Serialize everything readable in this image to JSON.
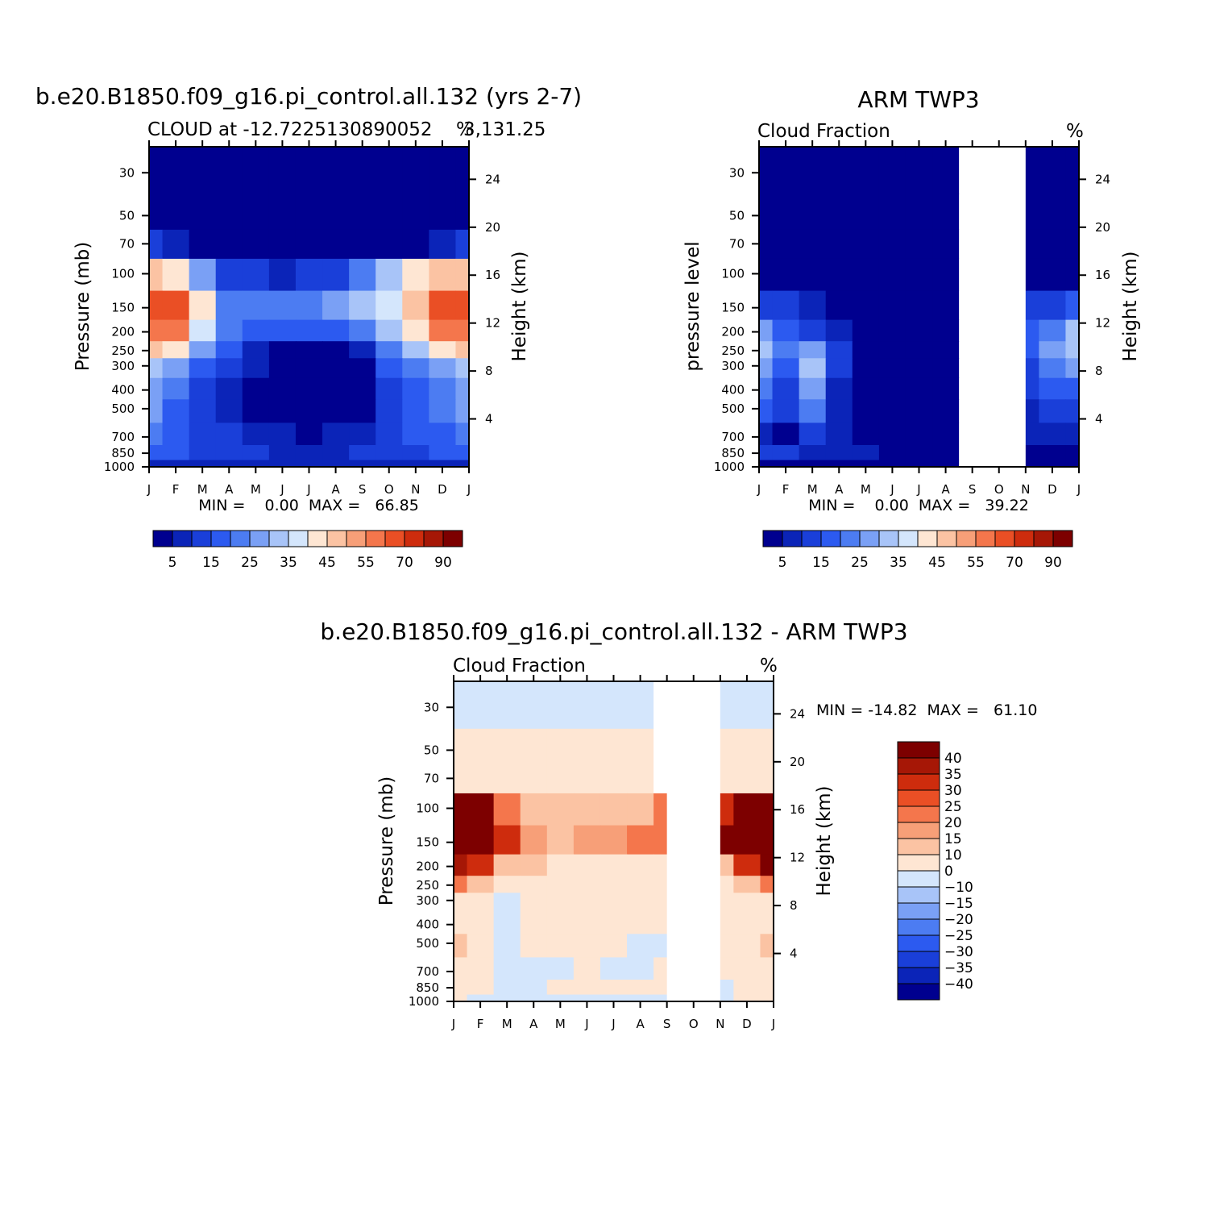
{
  "panels": {
    "model": {
      "title": "b.e20.B1850.f09_g16.pi_control.all.132 (yrs 2-7)",
      "subtitle_left": "CLOUD at -12.7225130890052",
      "subtitle_right": "%",
      "subtitle_tail": "3,131.25",
      "ylabel": "Pressure (mb)",
      "ylabel_right": "Height (km)",
      "minmax": "MIN =    0.00  MAX =   66.85"
    },
    "obs": {
      "title": "ARM TWP3",
      "subtitle_left": "Cloud Fraction",
      "subtitle_right": "%",
      "ylabel": "pressure level",
      "ylabel_right": "Height (km)",
      "minmax": "MIN =    0.00  MAX =   39.22"
    },
    "diff": {
      "title": "b.e20.B1850.f09_g16.pi_control.all.132 - ARM TWP3",
      "subtitle_left": "Cloud Fraction",
      "subtitle_right": "%",
      "ylabel": "Pressure (mb)",
      "ylabel_right": "Height (km)",
      "minmax": "MIN = -14.82  MAX =   61.10"
    }
  },
  "chart_data": [
    {
      "type": "heatmap",
      "title": "b.e20.B1850.f09_g16.pi_control.all.132 (yrs 2-7)",
      "xlabel": "",
      "ylabel": "Pressure (mb)",
      "ylabel_right": "Height (km)",
      "x": [
        "J",
        "F",
        "M",
        "A",
        "M",
        "J",
        "J",
        "A",
        "S",
        "O",
        "N",
        "D",
        "J"
      ],
      "y_ticks": [
        30,
        50,
        70,
        100,
        150,
        200,
        250,
        300,
        400,
        500,
        700,
        850,
        1000
      ],
      "y_right_ticks": [
        4,
        8,
        12,
        16,
        20,
        24
      ],
      "ylim": [
        1000,
        22
      ],
      "y_scale": "log",
      "levels": [
        5,
        10,
        15,
        20,
        25,
        30,
        35,
        40,
        45,
        50,
        55,
        60,
        70,
        80,
        90
      ],
      "colorbar_labels": [
        "5",
        "15",
        "25",
        "35",
        "45",
        "55",
        "70",
        "90"
      ],
      "value_range": {
        "min": 0.0,
        "max": 66.85
      },
      "series": [
        {
          "name": "",
          "values": [
            [
              0,
              0,
              0,
              0,
              0,
              0,
              0,
              0,
              0,
              0,
              0,
              0,
              0
            ],
            [
              0,
              0,
              0,
              0,
              0,
              0,
              0,
              0,
              0,
              0,
              0,
              0,
              0
            ],
            [
              10,
              8,
              3,
              1,
              0,
              0,
              0,
              0,
              0,
              1,
              3,
              8,
              10
            ],
            [
              45,
              40,
              25,
              12,
              10,
              9,
              10,
              14,
              22,
              34,
              42,
              45,
              45
            ],
            [
              62,
              60,
              40,
              22,
              20,
              22,
              24,
              28,
              32,
              38,
              48,
              62,
              62
            ],
            [
              58,
              55,
              38,
              20,
              16,
              15,
              16,
              18,
              22,
              30,
              40,
              55,
              58
            ],
            [
              45,
              40,
              28,
              15,
              8,
              4,
              3,
              4,
              7,
              20,
              30,
              40,
              45
            ],
            [
              32,
              25,
              16,
              10,
              5,
              1,
              0,
              1,
              4,
              15,
              22,
              28,
              32
            ],
            [
              28,
              22,
              14,
              8,
              3,
              0,
              0,
              0,
              2,
              10,
              18,
              24,
              28
            ],
            [
              26,
              16,
              12,
              8,
              3,
              0,
              0,
              0,
              2,
              10,
              18,
              22,
              26
            ],
            [
              20,
              18,
              14,
              10,
              6,
              5,
              4,
              6,
              8,
              12,
              16,
              18,
              20
            ],
            [
              18,
              16,
              14,
              12,
              10,
              9,
              8,
              9,
              10,
              12,
              14,
              16,
              18
            ],
            [
              6,
              6,
              6,
              6,
              6,
              6,
              6,
              6,
              6,
              6,
              6,
              6,
              6
            ]
          ]
        }
      ]
    },
    {
      "type": "heatmap",
      "title": "ARM TWP3",
      "xlabel": "",
      "ylabel": "pressure level",
      "ylabel_right": "Height (km)",
      "x": [
        "J",
        "F",
        "M",
        "A",
        "M",
        "J",
        "J",
        "A",
        "S",
        "O",
        "N",
        "D",
        "J"
      ],
      "y_ticks": [
        30,
        50,
        70,
        100,
        150,
        200,
        250,
        300,
        400,
        500,
        700,
        850,
        1000
      ],
      "y_right_ticks": [
        4,
        8,
        12,
        16,
        20,
        24
      ],
      "ylim": [
        1000,
        22
      ],
      "y_scale": "log",
      "levels": [
        5,
        10,
        15,
        20,
        25,
        30,
        35,
        40,
        45,
        50,
        55,
        60,
        70,
        80,
        90
      ],
      "colorbar_labels": [
        "5",
        "15",
        "25",
        "35",
        "45",
        "55",
        "70",
        "90"
      ],
      "value_range": {
        "min": 0.0,
        "max": 39.22
      },
      "missing_months": [
        "S-N"
      ],
      "series": [
        {
          "name": "",
          "values": [
            [
              0,
              0,
              0,
              0,
              0,
              0,
              0,
              0,
              null,
              null,
              0,
              0,
              0
            ],
            [
              0,
              0,
              0,
              0,
              0,
              0,
              0,
              0,
              null,
              null,
              0,
              0,
              0
            ],
            [
              0,
              0,
              0,
              0,
              0,
              0,
              0,
              0,
              null,
              null,
              0,
              0,
              0
            ],
            [
              0,
              0,
              0,
              0,
              0,
              0,
              0,
              0,
              null,
              null,
              2,
              2,
              2
            ],
            [
              12,
              10,
              8,
              3,
              0,
              0,
              0,
              0,
              null,
              null,
              10,
              14,
              16
            ],
            [
              28,
              18,
              14,
              8,
              2,
              0,
              0,
              0,
              null,
              null,
              16,
              24,
              30
            ],
            [
              30,
              20,
              28,
              10,
              2,
              0,
              0,
              0,
              null,
              null,
              18,
              28,
              32
            ],
            [
              26,
              18,
              30,
              10,
              2,
              0,
              0,
              0,
              null,
              null,
              14,
              22,
              26
            ],
            [
              20,
              14,
              26,
              8,
              2,
              0,
              0,
              0,
              null,
              null,
              10,
              16,
              18
            ],
            [
              16,
              12,
              22,
              6,
              2,
              0,
              0,
              0,
              null,
              null,
              8,
              12,
              14
            ],
            [
              6,
              4,
              12,
              6,
              3,
              1,
              0,
              0,
              null,
              null,
              5,
              5,
              5
            ],
            [
              10,
              10,
              8,
              6,
              6,
              3,
              0,
              0,
              null,
              null,
              4,
              4,
              4
            ],
            [
              4,
              3,
              3,
              2,
              1,
              0,
              0,
              0,
              null,
              null,
              1,
              1,
              1
            ]
          ]
        }
      ]
    },
    {
      "type": "heatmap",
      "title": "b.e20.B1850.f09_g16.pi_control.all.132 - ARM TWP3",
      "xlabel": "",
      "ylabel": "Pressure (mb)",
      "ylabel_right": "Height (km)",
      "x": [
        "J",
        "F",
        "M",
        "A",
        "M",
        "J",
        "J",
        "A",
        "S",
        "O",
        "N",
        "D",
        "J"
      ],
      "y_ticks": [
        30,
        50,
        70,
        100,
        150,
        200,
        250,
        300,
        400,
        500,
        700,
        850,
        1000
      ],
      "y_right_ticks": [
        4,
        8,
        12,
        16,
        20,
        24
      ],
      "ylim": [
        1000,
        22
      ],
      "y_scale": "log",
      "levels": [
        -40,
        -35,
        -30,
        -25,
        -20,
        -15,
        -10,
        0,
        10,
        15,
        20,
        25,
        30,
        35,
        40
      ],
      "colorbar_labels": [
        "40",
        "35",
        "30",
        "25",
        "20",
        "15",
        "10",
        "0",
        "-10",
        "-15",
        "-20",
        "-25",
        "-30",
        "-35",
        "-40"
      ],
      "value_range": {
        "min": -14.82,
        "max": 61.1
      },
      "missing_months": [
        "S-N"
      ],
      "series": [
        {
          "name": "",
          "values": [
            [
              -2,
              -2,
              -2,
              -2,
              -2,
              -2,
              -2,
              -2,
              null,
              null,
              -2,
              -2,
              -2
            ],
            [
              2,
              2,
              2,
              2,
              2,
              2,
              2,
              2,
              null,
              null,
              2,
              2,
              2
            ],
            [
              8,
              6,
              4,
              2,
              2,
              2,
              2,
              2,
              null,
              null,
              4,
              6,
              8
            ],
            [
              48,
              42,
              22,
              12,
              10,
              10,
              10,
              12,
              20,
              null,
              34,
              48,
              48
            ],
            [
              60,
              55,
              32,
              18,
              14,
              16,
              18,
              20,
              24,
              null,
              40,
              60,
              60
            ],
            [
              38,
              34,
              14,
              10,
              8,
              8,
              8,
              8,
              8,
              null,
              14,
              34,
              40
            ],
            [
              20,
              12,
              6,
              2,
              2,
              2,
              2,
              2,
              2,
              null,
              6,
              14,
              22
            ],
            [
              6,
              3,
              -4,
              2,
              3,
              3,
              3,
              3,
              3,
              null,
              3,
              6,
              8
            ],
            [
              8,
              2,
              -8,
              1,
              3,
              3,
              3,
              3,
              3,
              null,
              3,
              6,
              8
            ],
            [
              12,
              6,
              -4,
              1,
              3,
              3,
              3,
              -2,
              -4,
              null,
              3,
              6,
              12
            ],
            [
              4,
              2,
              -4,
              -2,
              -2,
              2,
              -2,
              -4,
              2,
              null,
              3,
              4,
              4
            ],
            [
              3,
              3,
              -3,
              -4,
              2,
              3,
              3,
              3,
              3,
              null,
              -3,
              3,
              3
            ],
            [
              1,
              -2,
              -3,
              -3,
              -3,
              -3,
              -3,
              -2,
              -2,
              null,
              -2,
              1,
              1
            ]
          ]
        }
      ]
    }
  ],
  "colors": {
    "seq": [
      "#00008f",
      "#0b24b8",
      "#1a3fd9",
      "#2c5af0",
      "#4c7cf2",
      "#7aa0f5",
      "#a8c4f8",
      "#d4e6fc",
      "#fee6d3",
      "#fbc3a3",
      "#f79f78",
      "#f4764c",
      "#ea4f25",
      "#ce2c0d",
      "#a61706",
      "#7d0000"
    ],
    "div": [
      "#00008f",
      "#0b24b8",
      "#1a3fd9",
      "#2c5af0",
      "#4c7cf2",
      "#7aa0f5",
      "#a8c4f8",
      "#d4e6fc",
      "#fee6d3",
      "#fbc3a3",
      "#f79f78",
      "#f4764c",
      "#ea4f25",
      "#ce2c0d",
      "#a61706",
      "#7d0000"
    ]
  }
}
